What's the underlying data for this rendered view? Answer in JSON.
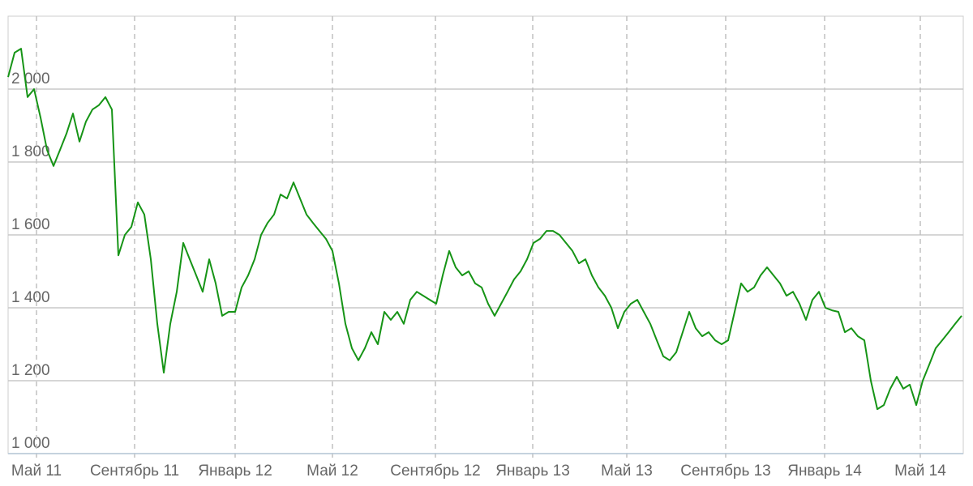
{
  "chart_data": {
    "type": "line",
    "series": [
      {
        "color": "#169416",
        "values": [
          2033,
          2100,
          2111,
          1978,
          2000,
          1922,
          1833,
          1789,
          1833,
          1878,
          1933,
          1856,
          1911,
          1944,
          1956,
          1978,
          1944,
          1544,
          1600,
          1622,
          1689,
          1656,
          1533,
          1356,
          1222,
          1356,
          1444,
          1578,
          1533,
          1489,
          1444,
          1533,
          1467,
          1378,
          1389,
          1389,
          1456,
          1489,
          1533,
          1600,
          1633,
          1656,
          1711,
          1700,
          1744,
          1700,
          1656,
          1633,
          1611,
          1589,
          1556,
          1467,
          1356,
          1289,
          1256,
          1289,
          1333,
          1300,
          1389,
          1367,
          1389,
          1356,
          1422,
          1444,
          1433,
          1422,
          1411,
          1489,
          1556,
          1511,
          1489,
          1500,
          1467,
          1456,
          1411,
          1378,
          1411,
          1444,
          1478,
          1500,
          1533,
          1578,
          1589,
          1611,
          1611,
          1600,
          1578,
          1556,
          1522,
          1533,
          1489,
          1456,
          1433,
          1400,
          1344,
          1389,
          1411,
          1422,
          1389,
          1356,
          1311,
          1267,
          1256,
          1278,
          1333,
          1389,
          1344,
          1322,
          1333,
          1311,
          1300,
          1311,
          1389,
          1467,
          1444,
          1456,
          1489,
          1511,
          1489,
          1467,
          1433,
          1444,
          1411,
          1367,
          1422,
          1444,
          1400,
          1393,
          1389,
          1333,
          1344,
          1322,
          1311,
          1200,
          1122,
          1133,
          1178,
          1211,
          1178,
          1189,
          1133,
          1200,
          1244,
          1289,
          1311,
          1333,
          1356,
          1378
        ]
      }
    ],
    "xlim": [
      0,
      147
    ],
    "xticks": [
      {
        "value": 4.375,
        "label": "Май 11"
      },
      {
        "value": 19.5,
        "label": "Сентябрь 11"
      },
      {
        "value": 35,
        "label": "Январь 12"
      },
      {
        "value": 50,
        "label": "Май 12"
      },
      {
        "value": 65.875,
        "label": "Сентябрь 12"
      },
      {
        "value": 80.875,
        "label": "Январь 13"
      },
      {
        "value": 95.375,
        "label": "Май 13"
      },
      {
        "value": 110.625,
        "label": "Сентябрь 13"
      },
      {
        "value": 125.875,
        "label": "Январь 14"
      },
      {
        "value": 140.625,
        "label": "Май 14"
      }
    ],
    "ylim": [
      1000,
      2200
    ],
    "yticks": [
      {
        "value": 1000,
        "label": "1 000"
      },
      {
        "value": 1200,
        "label": "1 200"
      },
      {
        "value": 1400,
        "label": "1 400"
      },
      {
        "value": 1600,
        "label": "1 600"
      },
      {
        "value": 1800,
        "label": "1 800"
      },
      {
        "value": 2000,
        "label": "2 000"
      }
    ],
    "grid": true
  }
}
